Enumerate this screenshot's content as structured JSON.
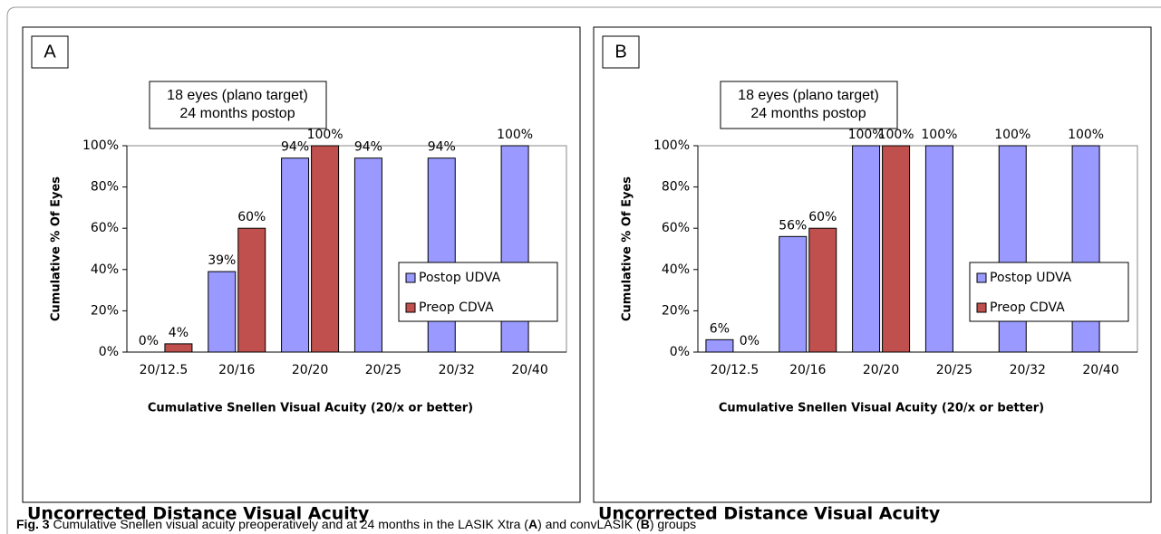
{
  "figure": {
    "caption_label": "Fig. 3",
    "caption_parts": [
      " Cumulative Snellen visual acuity preoperatively and at 24 months in the LASIK Xtra (",
      "A",
      ") and convLASIK (",
      "B",
      ") groups"
    ]
  },
  "chart_data": [
    {
      "type": "bar",
      "panel": "A",
      "annotation": [
        "18 eyes (plano target)",
        "24 months postop"
      ],
      "subtitle": "Uncorrected Distance Visual Acuity",
      "x_label": "Cumulative Snellen Visual Acuity (20/x or better)",
      "y_label": "Cumulative % Of Eyes",
      "categories": [
        "20/12.5",
        "20/16",
        "20/20",
        "20/25",
        "20/32",
        "20/40"
      ],
      "series": [
        {
          "name": "Postop UDVA",
          "color": "#9999ff",
          "values": [
            0,
            39,
            94,
            94,
            94,
            100
          ],
          "value_labels": [
            "0%",
            "39%",
            "94%",
            "94%",
            "94%",
            "100%"
          ]
        },
        {
          "name": "Preop CDVA",
          "color": "#c0504d",
          "values": [
            4,
            60,
            100,
            null,
            null,
            null
          ],
          "value_labels": [
            "4%",
            "60%",
            "100%",
            null,
            null,
            null
          ]
        }
      ],
      "ylim": [
        0,
        100
      ],
      "yticks": [
        {
          "value": 0,
          "label": "0%"
        },
        {
          "value": 20,
          "label": "20%"
        },
        {
          "value": 40,
          "label": "40%"
        },
        {
          "value": 60,
          "label": "60%"
        },
        {
          "value": 80,
          "label": "80%"
        },
        {
          "value": 100,
          "label": "100%"
        }
      ],
      "grid": false,
      "legend": "right"
    },
    {
      "type": "bar",
      "panel": "B",
      "annotation": [
        "18 eyes (plano target)",
        "24 months postop"
      ],
      "subtitle": "Uncorrected Distance Visual Acuity",
      "x_label": "Cumulative Snellen Visual Acuity (20/x or better)",
      "y_label": "Cumulative % Of Eyes",
      "categories": [
        "20/12.5",
        "20/16",
        "20/20",
        "20/25",
        "20/32",
        "20/40"
      ],
      "series": [
        {
          "name": "Postop UDVA",
          "color": "#9999ff",
          "values": [
            6,
            56,
            100,
            100,
            100,
            100
          ],
          "value_labels": [
            "6%",
            "56%",
            "100%",
            "100%",
            "100%",
            "100%"
          ]
        },
        {
          "name": "Preop CDVA",
          "color": "#c0504d",
          "values": [
            0,
            60,
            100,
            null,
            null,
            null
          ],
          "value_labels": [
            "0%",
            "60%",
            "100%",
            null,
            null,
            null
          ]
        }
      ],
      "ylim": [
        0,
        100
      ],
      "yticks": [
        {
          "value": 0,
          "label": "0%"
        },
        {
          "value": 20,
          "label": "20%"
        },
        {
          "value": 40,
          "label": "40%"
        },
        {
          "value": 60,
          "label": "60%"
        },
        {
          "value": 80,
          "label": "80%"
        },
        {
          "value": 100,
          "label": "100%"
        }
      ],
      "grid": false,
      "legend": "right"
    }
  ]
}
